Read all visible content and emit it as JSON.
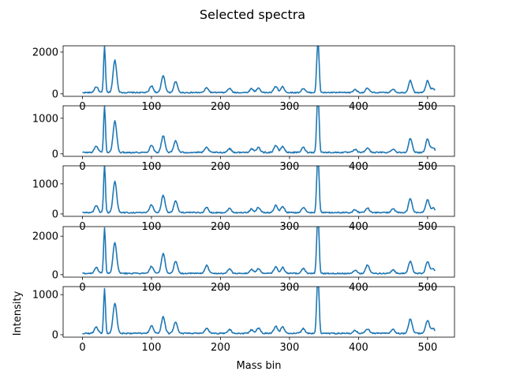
{
  "figure": {
    "title": "Selected spectra"
  },
  "chart_data": {
    "type": "line",
    "title": "Selected spectra",
    "xlabel": "Mass bin",
    "ylabel": "Intensity",
    "xlim": [
      -28,
      539
    ],
    "x_range": [
      0,
      511
    ],
    "xticks": [
      0,
      100,
      200,
      300,
      400,
      500
    ],
    "line_color": "#1f77b4",
    "peaks_x": [
      20,
      32,
      47,
      100,
      117,
      135,
      180,
      213,
      245,
      255,
      280,
      290,
      320,
      340,
      342,
      395,
      413,
      450,
      475,
      500,
      508
    ],
    "panels": [
      {
        "ylim": [
          -120,
          2300
        ],
        "yticks": [
          0,
          2000
        ],
        "baseline": 60,
        "peak_heights": [
          280,
          2230,
          1550,
          320,
          820,
          520,
          230,
          200,
          190,
          220,
          300,
          280,
          200,
          1420,
          1750,
          150,
          210,
          170,
          580,
          560,
          200
        ]
      },
      {
        "ylim": [
          -70,
          1350
        ],
        "yticks": [
          0,
          1000
        ],
        "baseline": 40,
        "peak_heights": [
          180,
          1300,
          880,
          210,
          470,
          330,
          140,
          110,
          100,
          140,
          200,
          170,
          140,
          950,
          1140,
          80,
          130,
          100,
          390,
          380,
          130
        ]
      },
      {
        "ylim": [
          -80,
          1600
        ],
        "yticks": [
          0,
          1000
        ],
        "baseline": 45,
        "peak_heights": [
          220,
          1580,
          1050,
          260,
          580,
          400,
          170,
          140,
          120,
          170,
          240,
          210,
          170,
          1100,
          1330,
          100,
          160,
          130,
          460,
          430,
          160
        ]
      },
      {
        "ylim": [
          -130,
          2500
        ],
        "yticks": [
          0,
          2000
        ],
        "baseline": 65,
        "peak_heights": [
          320,
          2400,
          1620,
          370,
          1050,
          620,
          420,
          230,
          210,
          260,
          330,
          310,
          250,
          1750,
          2100,
          170,
          450,
          190,
          640,
          620,
          230
        ]
      },
      {
        "ylim": [
          -60,
          1200
        ],
        "yticks": [
          0,
          1000
        ],
        "baseline": 35,
        "peak_heights": [
          160,
          1120,
          760,
          190,
          410,
          290,
          120,
          100,
          90,
          130,
          180,
          160,
          120,
          830,
          1000,
          70,
          110,
          90,
          360,
          330,
          120
        ]
      }
    ]
  }
}
